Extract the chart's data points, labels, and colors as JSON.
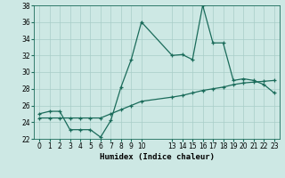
{
  "xlabel": "Humidex (Indice chaleur)",
  "background_color": "#cde8e4",
  "line_color": "#1a6b5a",
  "grid_color": "#a8cdc8",
  "x_ticks": [
    0,
    1,
    2,
    3,
    4,
    5,
    6,
    7,
    8,
    9,
    10,
    13,
    14,
    15,
    16,
    17,
    18,
    19,
    20,
    21,
    22,
    23
  ],
  "series1_x": [
    0,
    1,
    2,
    3,
    4,
    5,
    6,
    7,
    8,
    9,
    10,
    13,
    14,
    15,
    16,
    17,
    18,
    19,
    20,
    21,
    22,
    23
  ],
  "series1_y": [
    25.0,
    25.3,
    25.3,
    23.1,
    23.1,
    23.1,
    22.2,
    24.2,
    28.2,
    31.5,
    36.0,
    32.0,
    32.1,
    31.5,
    38.0,
    33.5,
    33.5,
    29.0,
    29.2,
    29.0,
    28.5,
    27.5
  ],
  "series2_x": [
    0,
    1,
    2,
    3,
    4,
    5,
    6,
    7,
    8,
    9,
    10,
    13,
    14,
    15,
    16,
    17,
    18,
    19,
    20,
    21,
    22,
    23
  ],
  "series2_y": [
    24.5,
    24.5,
    24.5,
    24.5,
    24.5,
    24.5,
    24.5,
    25.0,
    25.5,
    26.0,
    26.5,
    27.0,
    27.2,
    27.5,
    27.8,
    28.0,
    28.2,
    28.5,
    28.7,
    28.8,
    28.9,
    29.0
  ],
  "ylim": [
    22,
    38
  ],
  "xlim": [
    -0.5,
    23.5
  ],
  "yticks": [
    22,
    24,
    26,
    28,
    30,
    32,
    34,
    36,
    38
  ],
  "xlabel_fontsize": 6.5,
  "tick_fontsize": 5.5,
  "marker_size": 3,
  "linewidth": 0.9
}
